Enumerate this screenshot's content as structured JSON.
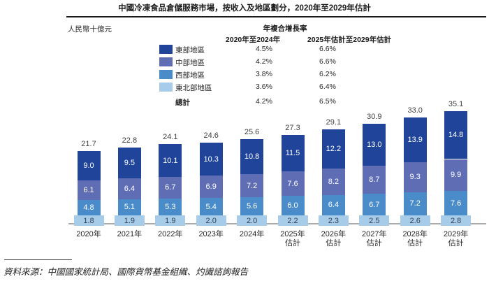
{
  "header": {
    "title": "中國冷凍食品倉儲服務市場，按收入及地區劃分，2020年至2029年估計",
    "unit_label": "人民幣十億元"
  },
  "cagr": {
    "title": "年複合增長率",
    "columns": [
      "2020年至2024年",
      "2025年估計至2029年估計"
    ],
    "rows": [
      {
        "key": "east",
        "label": "東部地區",
        "swatch": "#1f4499",
        "bold": false,
        "values": [
          "4.5%",
          "6.6%"
        ]
      },
      {
        "key": "central",
        "label": "中部地區",
        "swatch": "#5f6db4",
        "bold": false,
        "values": [
          "4.2%",
          "6.6%"
        ]
      },
      {
        "key": "west",
        "label": "西部地區",
        "swatch": "#4a8cca",
        "bold": false,
        "values": [
          "3.8%",
          "6.2%"
        ]
      },
      {
        "key": "northeast",
        "label": "東北部地區",
        "swatch": "#a7cce9",
        "bold": false,
        "values": [
          "3.6%",
          "6.4%"
        ]
      },
      {
        "key": "total",
        "label": "總計",
        "swatch": null,
        "bold": true,
        "values": [
          "4.2%",
          "6.5%"
        ]
      }
    ]
  },
  "chart_data": {
    "type": "bar",
    "stacked": true,
    "title": "中國冷凍食品倉儲服務市場，按收入及地區劃分，2020年至2029年估計",
    "ylabel": "人民幣十億元",
    "ylim": [
      0,
      36
    ],
    "grid": false,
    "legend_position": "top-left",
    "categories": [
      "2020年",
      "2021年",
      "2022年",
      "2023年",
      "2024年",
      "2025年估計",
      "2026年估計",
      "2027年估計",
      "2028年估計",
      "2029年估計"
    ],
    "series": [
      {
        "key": "east",
        "name": "東部地區",
        "color": "#1f4499",
        "values": [
          9.0,
          9.5,
          10.1,
          10.3,
          10.8,
          11.5,
          12.2,
          13.0,
          13.9,
          14.8
        ]
      },
      {
        "key": "central",
        "name": "中部地區",
        "color": "#5f6db4",
        "values": [
          6.1,
          6.4,
          6.7,
          6.9,
          7.2,
          7.6,
          8.2,
          8.7,
          9.3,
          9.9
        ]
      },
      {
        "key": "west",
        "name": "西部地區",
        "color": "#4a8cca",
        "values": [
          4.8,
          5.1,
          5.3,
          5.4,
          5.6,
          6.0,
          6.4,
          6.7,
          7.2,
          7.6
        ]
      },
      {
        "key": "northeast",
        "name": "東北部地區",
        "color": "#a7cce9",
        "values": [
          1.8,
          1.9,
          1.9,
          2.0,
          2.0,
          2.2,
          2.3,
          2.5,
          2.6,
          2.8
        ]
      }
    ],
    "totals": [
      21.7,
      22.8,
      24.1,
      24.6,
      25.6,
      27.3,
      29.1,
      30.9,
      33.0,
      35.1
    ]
  },
  "footer": {
    "source": "資料來源：中國國家統計局、國際貨幣基金組織、灼識諮詢報告"
  },
  "colors": {
    "axis": "#ababab",
    "top_rule": "#1a1a1a",
    "northeast_value_text": "#33425a"
  }
}
